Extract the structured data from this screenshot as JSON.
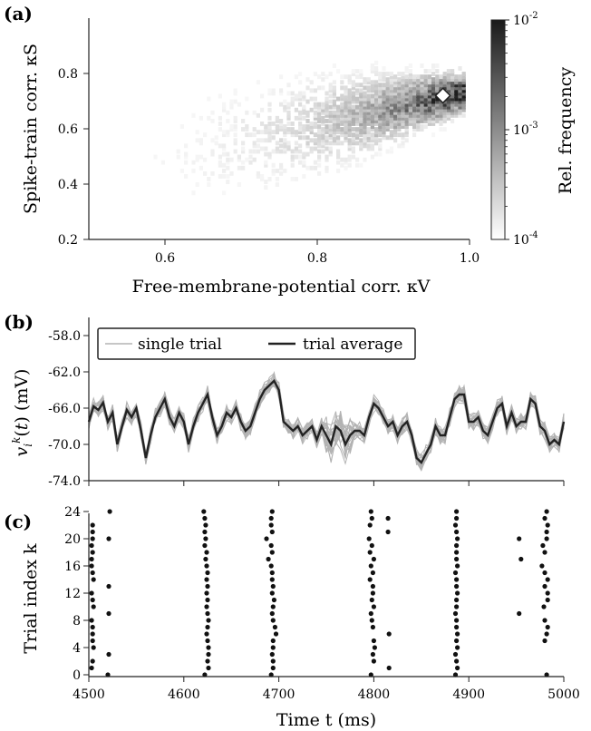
{
  "panels": {
    "a": "(a)",
    "b": "(b)",
    "c": "(c)"
  },
  "chart_data": [
    {
      "type": "heatmap",
      "panel": "(a)",
      "xlabel": "Free-membrane-potential corr. κV",
      "ylabel": "Spike-train corr. κS",
      "xlim": [
        0.5,
        1.0
      ],
      "ylim": [
        0.2,
        1.0
      ],
      "xticks": [
        "0.6",
        "0.8",
        "1.0"
      ],
      "yticks": [
        "0.2",
        "0.4",
        "0.6",
        "0.8"
      ],
      "xtick_values": [
        0.6,
        0.8,
        1.0
      ],
      "ytick_values": [
        0.2,
        0.4,
        0.6,
        0.8
      ],
      "colorbar": {
        "label": "Rel. frequency",
        "scale": "log",
        "ticks": [
          "10-2",
          "10-3",
          "10-4"
        ],
        "tick_values": [
          0.01,
          0.001,
          0.0001
        ],
        "colormap": [
          "#ffffff",
          "#1a1a1a"
        ]
      },
      "marker": {
        "shape": "diamond",
        "x": 0.965,
        "y": 0.72
      },
      "density_peak": {
        "x": 0.985,
        "y": 0.72
      }
    },
    {
      "type": "line",
      "panel": "(b)",
      "ylabel": "v_i^k(t) (mV)",
      "ylim": [
        -74.0,
        -56.0
      ],
      "yticks": [
        "-58.0",
        "-62.0",
        "-66.0",
        "-70.0",
        "-74.0"
      ],
      "ytick_values": [
        -58,
        -62,
        -66,
        -70,
        -74
      ],
      "xlim": [
        4500,
        5000
      ],
      "legend": {
        "position": "top-left",
        "entries": [
          "single trial",
          "trial average"
        ]
      },
      "series": [
        {
          "name": "trial average",
          "color": "#222222",
          "x": [
            4500,
            4505,
            4510,
            4515,
            4520,
            4525,
            4530,
            4535,
            4540,
            4545,
            4550,
            4555,
            4560,
            4565,
            4570,
            4575,
            4580,
            4585,
            4590,
            4595,
            4600,
            4605,
            4610,
            4615,
            4620,
            4625,
            4630,
            4635,
            4640,
            4645,
            4650,
            4655,
            4660,
            4665,
            4670,
            4675,
            4680,
            4685,
            4690,
            4695,
            4700,
            4705,
            4710,
            4715,
            4720,
            4725,
            4730,
            4735,
            4740,
            4745,
            4750,
            4755,
            4760,
            4765,
            4770,
            4775,
            4780,
            4785,
            4790,
            4795,
            4800,
            4805,
            4810,
            4815,
            4820,
            4825,
            4830,
            4835,
            4840,
            4845,
            4850,
            4855,
            4860,
            4865,
            4870,
            4875,
            4880,
            4885,
            4890,
            4895,
            4900,
            4905,
            4910,
            4915,
            4920,
            4925,
            4930,
            4935,
            4940,
            4945,
            4950,
            4955,
            4960,
            4965,
            4970,
            4975,
            4980,
            4985,
            4990,
            4995,
            5000
          ],
          "y": [
            -67.5,
            -65.8,
            -66.2,
            -65.4,
            -67.5,
            -66.5,
            -70.0,
            -68.0,
            -66.2,
            -67.0,
            -66.0,
            -68.5,
            -71.5,
            -69.0,
            -67.0,
            -66.0,
            -65.0,
            -67.0,
            -68.0,
            -66.5,
            -67.5,
            -70.0,
            -68.0,
            -66.5,
            -65.5,
            -64.5,
            -67.0,
            -69.0,
            -68.0,
            -66.5,
            -67.0,
            -66.0,
            -67.5,
            -68.5,
            -68.0,
            -66.5,
            -65.0,
            -64.0,
            -63.5,
            -63.0,
            -64.0,
            -67.5,
            -68.0,
            -68.5,
            -68.0,
            -69.0,
            -68.5,
            -68.0,
            -69.5,
            -68.0,
            -69.0,
            -70.0,
            -68.0,
            -68.5,
            -70.0,
            -69.0,
            -68.5,
            -68.5,
            -69.0,
            -67.0,
            -65.5,
            -66.0,
            -67.0,
            -68.0,
            -67.5,
            -69.0,
            -68.0,
            -67.5,
            -69.0,
            -71.5,
            -72.0,
            -71.0,
            -70.0,
            -68.0,
            -69.0,
            -69.0,
            -67.0,
            -65.0,
            -64.5,
            -64.5,
            -67.5,
            -67.5,
            -67.0,
            -68.5,
            -69.0,
            -67.5,
            -66.0,
            -65.5,
            -68.0,
            -66.5,
            -68.0,
            -67.5,
            -67.5,
            -65.0,
            -65.5,
            -68.0,
            -68.5,
            -70.0,
            -69.5,
            -70.0,
            -67.5
          ]
        },
        {
          "name": "single trial",
          "color": "#b3b3b3",
          "note_count": 24
        }
      ]
    },
    {
      "type": "scatter",
      "panel": "(c)",
      "xlabel": "Time t (ms)",
      "ylabel": "Trial index k",
      "xlim": [
        4500,
        5000
      ],
      "ylim": [
        0,
        24
      ],
      "xticks": [
        "4500",
        "4600",
        "4700",
        "4800",
        "4900",
        "5000"
      ],
      "xtick_values": [
        4500,
        4600,
        4700,
        4800,
        4900,
        5000
      ],
      "yticks": [
        "0",
        "4",
        "8",
        "12",
        "16",
        "20",
        "24"
      ],
      "ytick_values": [
        0,
        4,
        8,
        12,
        16,
        20,
        24
      ],
      "spikes": [
        {
          "k": 24,
          "t": [
            4522,
            4621,
            4693,
            4797,
            4887,
            4982
          ]
        },
        {
          "k": 23,
          "t": [
            4622,
            4692,
            4798,
            4815,
            4887,
            4980
          ]
        },
        {
          "k": 22,
          "t": [
            4504,
            4623,
            4692,
            4796,
            4886,
            4983
          ]
        },
        {
          "k": 21,
          "t": [
            4504,
            4622,
            4693,
            4815,
            4887,
            4982
          ]
        },
        {
          "k": 20,
          "t": [
            4504,
            4521,
            4623,
            4687,
            4795,
            4888,
            4953,
            4982
          ]
        },
        {
          "k": 19,
          "t": [
            4503,
            4622,
            4692,
            4798,
            4887,
            4978
          ]
        },
        {
          "k": 18,
          "t": [
            4504,
            4624,
            4693,
            4796,
            4887,
            4980
          ]
        },
        {
          "k": 17,
          "t": [
            4503,
            4623,
            4689,
            4800,
            4887,
            4955
          ]
        },
        {
          "k": 16,
          "t": [
            4503,
            4624,
            4692,
            4797,
            4888,
            4977
          ]
        },
        {
          "k": 15,
          "t": [
            4504,
            4625,
            4693,
            4799,
            4886,
            4980
          ]
        },
        {
          "k": 14,
          "t": [
            4505,
            4624,
            4693,
            4796,
            4887,
            4983
          ]
        },
        {
          "k": 13,
          "t": [
            4521,
            4625,
            4694,
            4799,
            4887,
            4980
          ]
        },
        {
          "k": 12,
          "t": [
            4503,
            4624,
            4693,
            4799,
            4888,
            4983
          ]
        },
        {
          "k": 11,
          "t": [
            4504,
            4625,
            4695,
            4798,
            4887,
            4983
          ]
        },
        {
          "k": 10,
          "t": [
            4505,
            4624,
            4694,
            4800,
            4887,
            4979
          ]
        },
        {
          "k": 9,
          "t": [
            4521,
            4625,
            4693,
            4797,
            4886,
            4953
          ]
        },
        {
          "k": 8,
          "t": [
            4503,
            4626,
            4694,
            4798,
            4887,
            4980
          ]
        },
        {
          "k": 7,
          "t": [
            4504,
            4625,
            4696,
            4799,
            4887,
            4983
          ]
        },
        {
          "k": 6,
          "t": [
            4504,
            4624,
            4697,
            4816,
            4888,
            4982
          ]
        },
        {
          "k": 5,
          "t": [
            4504,
            4625,
            4694,
            4800,
            4887,
            4980
          ]
        },
        {
          "k": 4,
          "t": [
            4505,
            4626,
            4694,
            4801,
            4888
          ]
        },
        {
          "k": 3,
          "t": [
            4521,
            4626,
            4693,
            4799,
            4886
          ]
        },
        {
          "k": 2,
          "t": [
            4504,
            4625,
            4694,
            4800,
            4887
          ]
        },
        {
          "k": 1,
          "t": [
            4503,
            4626,
            4694,
            4816,
            4888
          ]
        },
        {
          "k": 0,
          "t": [
            4520,
            4622,
            4692,
            4797,
            4886,
            4982
          ]
        }
      ]
    }
  ]
}
